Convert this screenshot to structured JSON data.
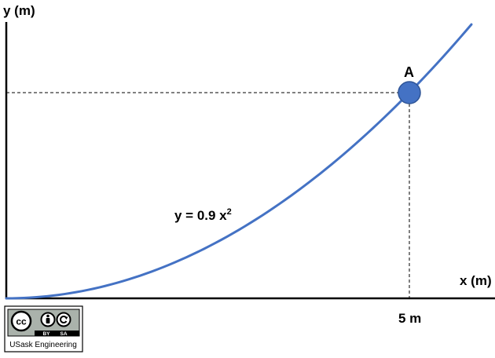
{
  "axes": {
    "y_label": "y (m)",
    "x_label": "x (m)"
  },
  "equation": {
    "lhs": "y = 0.9 x",
    "exponent": "2"
  },
  "point": {
    "label": "A",
    "x_tick_label": "5 m"
  },
  "license": {
    "cc": "cc",
    "by": "BY",
    "sa": "SA",
    "org": "USask Engineering"
  },
  "colors": {
    "curve": "#4472c4",
    "point_fill": "#4472c4",
    "point_stroke": "#2f5597",
    "axis": "#000000"
  }
}
